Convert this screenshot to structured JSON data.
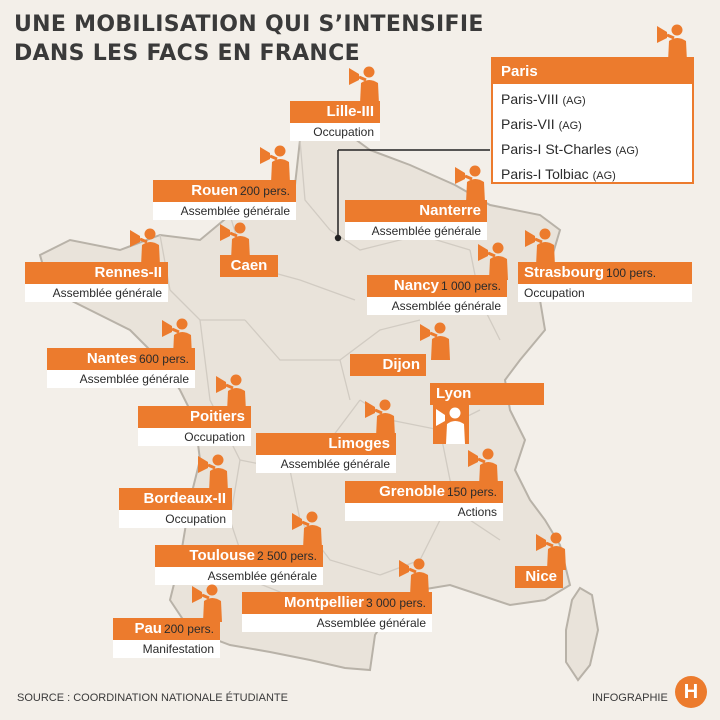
{
  "title": {
    "line1": "UNE MOBILISATION QUI S’INTENSIFIE",
    "line2": "DANS LES FACS EN FRANCE"
  },
  "paris": {
    "title": "Paris",
    "items": [
      {
        "name": "Paris-VIII",
        "tag": "(AG)"
      },
      {
        "name": "Paris-VII",
        "tag": "(AG)"
      },
      {
        "name": "Paris-I St-Charles",
        "tag": "(AG)"
      },
      {
        "name": "Paris-I Tolbiac",
        "tag": "(AG)"
      }
    ]
  },
  "universities": {
    "lille": {
      "name": "Lille-III",
      "action": "Occupation"
    },
    "rouen": {
      "name": "Rouen",
      "count": "200 pers.",
      "action": "Assemblée générale"
    },
    "nanterre": {
      "name": "Nanterre",
      "action": "Assemblée générale"
    },
    "caen": {
      "name": "Caen"
    },
    "rennes": {
      "name": "Rennes-II",
      "action": "Assemblée générale"
    },
    "strasbourg": {
      "name": "Strasbourg",
      "count": "100 pers.",
      "action": "Occupation"
    },
    "nancy": {
      "name": "Nancy",
      "count": "1 000 pers.",
      "action": "Assemblée générale"
    },
    "nantes": {
      "name": "Nantes",
      "count": "600 pers.",
      "action": "Assemblée générale"
    },
    "dijon": {
      "name": "Dijon"
    },
    "lyon": {
      "name": "Lyon"
    },
    "poitiers": {
      "name": "Poitiers",
      "action": "Occupation"
    },
    "limoges": {
      "name": "Limoges",
      "action": "Assemblée générale"
    },
    "grenoble": {
      "name": "Grenoble",
      "count": "150 pers.",
      "action": "Actions"
    },
    "bordeaux": {
      "name": "Bordeaux-II",
      "action": "Occupation"
    },
    "toulouse": {
      "name": "Toulouse",
      "count": "2 500 pers.",
      "action": "Assemblée générale"
    },
    "nice": {
      "name": "Nice"
    },
    "montpellier": {
      "name": "Montpellier",
      "count": "3 000 pers.",
      "action": "Assemblée générale"
    },
    "pau": {
      "name": "Pau",
      "count": "200 pers.",
      "action": "Manifestation"
    }
  },
  "footer": {
    "source": "SOURCE : COORDINATION NATIONALE ÉTUDIANTE",
    "credit": "INFOGRAPHIE",
    "logo": "H"
  },
  "colors": {
    "accent": "#ec7b2d",
    "land": "#e9e3da",
    "border": "#c9c3ba",
    "background": "#f3efe9"
  },
  "icons": {
    "protester": "megaphone-protester-icon",
    "logo": "humanite-logo-icon"
  }
}
